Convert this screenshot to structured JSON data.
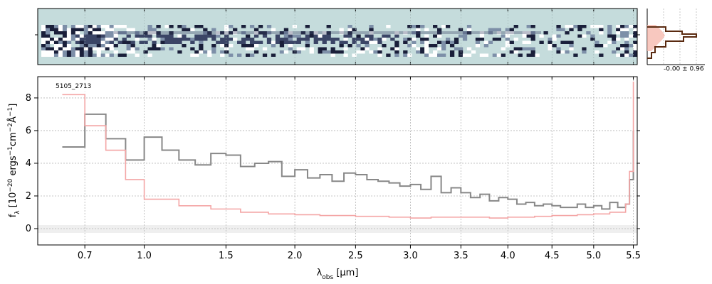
{
  "chart_data": [
    {
      "type": "heatmap",
      "panel": "2d-spectrum",
      "title": "",
      "colors": {
        "background": "#c5dcdc",
        "dark": "#1a1f3a"
      },
      "shown_x_ticks_um": [
        0.7,
        1.0,
        1.5,
        2.0,
        2.5,
        3.0,
        3.5,
        4.0,
        4.5,
        5.0,
        5.5
      ]
    },
    {
      "type": "histogram",
      "panel": "residual-distribution",
      "stat_label": "-0.00 ± 0.96",
      "colors": {
        "hist": "#8b3a1a",
        "fill": "#f6b6aa"
      }
    },
    {
      "type": "line",
      "panel": "1d-spectrum",
      "object_label": "5105_2713",
      "xlabel_html": "λ<tspan baseline-shift='sub' font-size='9px'>obs</tspan> [μm]",
      "xlabel": "λobs [μm]",
      "ylabel": "fλ [10^-20 ergs^-1cm^-2Å^-1]",
      "x_scale": "sqrt",
      "xlim": [
        0.5,
        5.55
      ],
      "ylim": [
        -1,
        9.3
      ],
      "x_ticks": [
        0.7,
        1.0,
        1.5,
        2.0,
        2.5,
        3.0,
        3.5,
        4.0,
        4.5,
        5.0,
        5.5
      ],
      "x_tick_labels": [
        "0.7",
        "1.0",
        "1.5",
        "2.0",
        "2.5",
        "3.0",
        "3.5",
        "4.0",
        "4.5",
        "5.0",
        "5.5"
      ],
      "y_ticks": [
        0,
        2,
        4,
        6,
        8
      ],
      "y_tick_labels": [
        "0",
        "2",
        "4",
        "6",
        "8"
      ],
      "grid": true,
      "series": [
        {
          "role": "flux",
          "color": "#888888",
          "x": [
            0.6,
            0.7,
            0.8,
            0.9,
            1.0,
            1.1,
            1.2,
            1.3,
            1.4,
            1.5,
            1.6,
            1.7,
            1.8,
            1.9,
            2.0,
            2.1,
            2.2,
            2.3,
            2.4,
            2.5,
            2.6,
            2.7,
            2.8,
            2.9,
            3.0,
            3.1,
            3.2,
            3.3,
            3.4,
            3.5,
            3.6,
            3.7,
            3.8,
            3.9,
            4.0,
            4.1,
            4.2,
            4.3,
            4.4,
            4.5,
            4.6,
            4.7,
            4.8,
            4.9,
            5.0,
            5.1,
            5.2,
            5.3,
            5.4,
            5.45,
            5.5
          ],
          "y": [
            5.0,
            7.0,
            5.5,
            4.2,
            5.6,
            4.8,
            4.2,
            3.9,
            4.6,
            4.5,
            3.8,
            4.0,
            4.1,
            3.2,
            3.6,
            3.1,
            3.3,
            2.9,
            3.4,
            3.3,
            3.0,
            2.9,
            2.8,
            2.6,
            2.7,
            2.4,
            3.2,
            2.2,
            2.5,
            2.2,
            1.9,
            2.1,
            1.7,
            1.9,
            1.8,
            1.5,
            1.6,
            1.4,
            1.5,
            1.4,
            1.3,
            1.3,
            1.5,
            1.3,
            1.4,
            1.2,
            1.6,
            1.3,
            1.5,
            3.0,
            6.0
          ]
        },
        {
          "role": "model",
          "color": "#f4a5a5",
          "x": [
            0.6,
            0.7,
            0.8,
            0.9,
            1.0,
            1.2,
            1.4,
            1.6,
            1.8,
            2.0,
            2.2,
            2.5,
            2.8,
            3.0,
            3.2,
            3.5,
            3.8,
            4.0,
            4.3,
            4.5,
            4.8,
            5.0,
            5.2,
            5.4,
            5.45,
            5.5
          ],
          "y": [
            8.2,
            6.3,
            4.8,
            3.0,
            1.8,
            1.4,
            1.2,
            1.0,
            0.9,
            0.85,
            0.8,
            0.75,
            0.7,
            0.65,
            0.7,
            0.7,
            0.65,
            0.7,
            0.75,
            0.8,
            0.85,
            0.9,
            1.0,
            1.5,
            3.5,
            9.0
          ]
        }
      ]
    }
  ]
}
